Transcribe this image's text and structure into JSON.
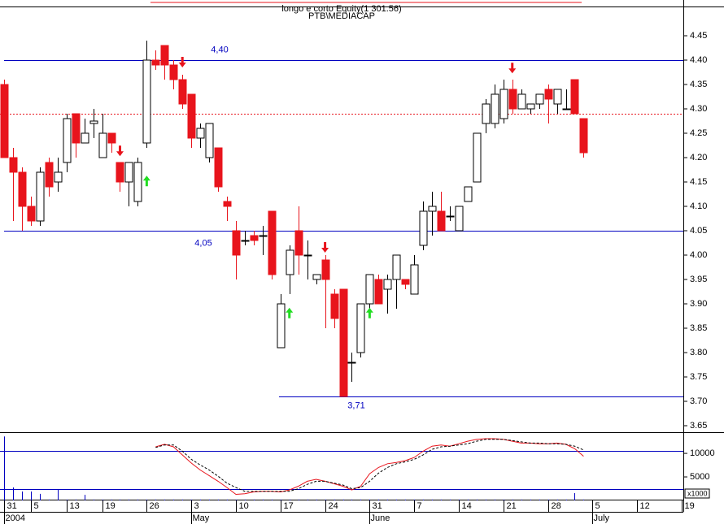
{
  "chart_data": {
    "type": "candlestick",
    "title": "longo e corto Equity(1 301.56)",
    "subtitle": "PTB\\MEDIACAP",
    "categories": [
      "31",
      null,
      null,
      "5",
      null,
      null,
      null,
      "13",
      null,
      null,
      null,
      "19",
      null,
      null,
      null,
      null,
      "26",
      null,
      null,
      null,
      null,
      "3",
      null,
      null,
      null,
      null,
      "10",
      null,
      null,
      null,
      null,
      "17",
      null,
      null,
      null,
      null,
      "24",
      null,
      null,
      null,
      null,
      "31",
      null,
      null,
      null,
      null,
      "7",
      null,
      null,
      null,
      null,
      "14",
      null,
      null,
      null,
      null,
      "21",
      null,
      null,
      null,
      null,
      "28",
      null,
      null,
      null,
      null,
      "5",
      null,
      null,
      null,
      null,
      "12",
      null,
      null,
      null,
      null,
      "19"
    ],
    "months": [
      "2004",
      null,
      null,
      null,
      null,
      null,
      null,
      null,
      null,
      null,
      null,
      null,
      null,
      null,
      null,
      null,
      null,
      null,
      null,
      null,
      null,
      "May",
      null,
      null,
      null,
      null,
      null,
      null,
      null,
      null,
      null,
      null,
      null,
      null,
      null,
      null,
      null,
      null,
      null,
      null,
      null,
      "June",
      null,
      null,
      null,
      null,
      null,
      null,
      null,
      null,
      null,
      null,
      null,
      null,
      null,
      null,
      null,
      null,
      null,
      null,
      null,
      null,
      null,
      null,
      null,
      null,
      "July",
      null,
      null,
      null,
      null,
      null,
      null,
      null,
      null,
      null,
      null
    ],
    "open": [
      4.35,
      4.2,
      4.17,
      4.1,
      4.07,
      4.19,
      4.15,
      4.19,
      4.29,
      4.23,
      4.27,
      4.2,
      4.25,
      4.19,
      4.15,
      4.11,
      4.23,
      4.4,
      4.43,
      4.39,
      4.36,
      4.33,
      4.24,
      4.2,
      4.22,
      4.11,
      4.05,
      4.03,
      4.04,
      4.04,
      4.09,
      3.81,
      3.96,
      4.05,
      4.0,
      3.95,
      3.99,
      3.92,
      3.93,
      3.78,
      3.8,
      3.9,
      3.95,
      3.93,
      3.95,
      3.95,
      3.92,
      4.02,
      4.09,
      4.09,
      4.08,
      4.05,
      4.11,
      4.15,
      4.27,
      4.27,
      4.28,
      4.34,
      4.3,
      4.3,
      4.31,
      4.34,
      4.31,
      4.3,
      4.36,
      4.28,
      null,
      null,
      null,
      null,
      null,
      null,
      null,
      null,
      null,
      null,
      null
    ],
    "high": [
      4.36,
      4.22,
      4.18,
      4.12,
      4.18,
      4.2,
      4.2,
      4.29,
      4.29,
      4.28,
      4.3,
      4.29,
      4.25,
      4.19,
      4.19,
      4.2,
      4.44,
      4.42,
      4.43,
      4.4,
      4.37,
      4.33,
      4.27,
      4.27,
      4.22,
      4.12,
      4.07,
      4.05,
      4.05,
      4.06,
      4.09,
      3.92,
      4.02,
      4.1,
      4.03,
      3.96,
      4.0,
      3.93,
      3.93,
      3.8,
      3.9,
      3.96,
      3.96,
      3.96,
      4.0,
      3.95,
      4.0,
      4.11,
      4.13,
      4.13,
      4.1,
      4.1,
      4.14,
      4.25,
      4.32,
      4.35,
      4.36,
      4.36,
      4.34,
      4.31,
      4.33,
      4.35,
      4.34,
      4.34,
      4.36,
      4.28,
      null,
      null,
      null,
      null,
      null,
      null,
      null,
      null,
      null,
      null,
      null
    ],
    "low": [
      4.2,
      4.07,
      4.05,
      4.06,
      4.06,
      4.12,
      4.13,
      4.17,
      4.2,
      4.23,
      4.24,
      4.2,
      4.21,
      4.13,
      4.1,
      4.1,
      4.22,
      4.38,
      4.36,
      4.34,
      4.3,
      4.22,
      4.22,
      4.19,
      4.13,
      4.07,
      3.95,
      4.02,
      4.02,
      4.0,
      3.95,
      3.81,
      3.92,
      3.96,
      3.95,
      3.94,
      3.85,
      3.85,
      3.71,
      3.74,
      3.79,
      3.89,
      3.9,
      3.88,
      3.89,
      3.93,
      3.92,
      4.01,
      4.04,
      4.05,
      4.07,
      4.05,
      4.11,
      4.15,
      4.25,
      4.26,
      4.27,
      4.29,
      4.3,
      4.29,
      4.3,
      4.27,
      4.29,
      4.3,
      4.29,
      4.2,
      null,
      null,
      null,
      null,
      null,
      null,
      null,
      null,
      null,
      null,
      null
    ],
    "close": [
      4.2,
      4.17,
      4.1,
      4.07,
      4.17,
      4.14,
      4.17,
      4.28,
      4.23,
      4.25,
      4.275,
      4.25,
      4.23,
      4.15,
      4.19,
      4.19,
      4.4,
      4.39,
      4.39,
      4.36,
      4.31,
      4.24,
      4.26,
      4.27,
      4.14,
      4.1,
      4.0,
      4.03,
      4.03,
      4.04,
      3.96,
      3.9,
      4.01,
      4.0,
      4.0,
      3.96,
      3.95,
      3.87,
      3.71,
      3.78,
      3.9,
      3.96,
      3.9,
      3.95,
      4.0,
      3.94,
      3.98,
      4.09,
      4.1,
      4.05,
      4.08,
      4.1,
      4.14,
      4.25,
      4.31,
      4.33,
      4.34,
      4.3,
      4.33,
      4.31,
      4.33,
      4.32,
      4.34,
      4.3,
      4.29,
      4.21,
      null,
      null,
      null,
      null,
      null,
      null,
      null,
      null,
      null,
      null,
      null
    ],
    "up_color": "#ffffff",
    "down_color": "#e8141c",
    "ylim": [
      3.64,
      4.51
    ],
    "yticks": [
      4.45,
      {
        "value": 4.4,
        "label": "4.40"
      },
      4.35,
      {
        "value": 4.3,
        "label": "4.30"
      },
      4.25,
      {
        "value": 4.2,
        "label": "4.20"
      },
      4.15,
      {
        "value": 4.1,
        "label": "4.10"
      },
      4.05,
      {
        "value": 4,
        "label": "4.00"
      },
      3.95,
      {
        "value": 3.9,
        "label": "3.90"
      },
      3.85,
      {
        "value": 3.8,
        "label": "3.80"
      },
      3.75,
      {
        "value": 3.7,
        "label": "3.70"
      },
      3.65
    ],
    "hlines": [
      {
        "value": 4.4,
        "label": "4,40",
        "color": "#0000c0"
      },
      {
        "value": 4.05,
        "label": "4,05",
        "color": "#0000c0"
      },
      {
        "value": 3.71,
        "label": "3,71",
        "color": "#0000c0"
      },
      {
        "value": 4.29,
        "color": "#e8141c",
        "dashed": true
      }
    ],
    "signals": {
      "sell_color": "#e8141c",
      "buy_color": "#22dd22",
      "sell": [
        null,
        null,
        null,
        null,
        null,
        null,
        null,
        null,
        null,
        null,
        null,
        null,
        null,
        4.213,
        null,
        null,
        null,
        null,
        null,
        null,
        4.395,
        null,
        null,
        null,
        null,
        null,
        null,
        null,
        null,
        null,
        null,
        null,
        null,
        null,
        null,
        null,
        4.015,
        null,
        null,
        null,
        null,
        null,
        null,
        null,
        null,
        null,
        null,
        null,
        null,
        null,
        null,
        null,
        null,
        null,
        null,
        null,
        null,
        4.383,
        null,
        null,
        null,
        null,
        null,
        null,
        null,
        null,
        null,
        null,
        null,
        null,
        null,
        null,
        null,
        null,
        null,
        null,
        null
      ],
      "buy": [
        null,
        null,
        null,
        null,
        null,
        null,
        null,
        null,
        null,
        null,
        null,
        null,
        null,
        null,
        null,
        null,
        4.153,
        null,
        null,
        null,
        null,
        null,
        null,
        null,
        null,
        null,
        null,
        null,
        null,
        null,
        null,
        null,
        3.882,
        null,
        null,
        null,
        null,
        null,
        null,
        null,
        null,
        3.882,
        null,
        null,
        null,
        null,
        null,
        null,
        null,
        null,
        null,
        null,
        null,
        null,
        null,
        null,
        null,
        null,
        null,
        null,
        null,
        null,
        null,
        null,
        null,
        null,
        null,
        null,
        null,
        null,
        null,
        null,
        null,
        null,
        null,
        null,
        null
      ]
    },
    "volume": {
      "color": "#0000c0",
      "unit_label": "x1000",
      "ylim": [
        0,
        14500
      ],
      "yticks": [
        10000,
        5000
      ],
      "values": [
        13600,
        2760,
        1900,
        1900,
        1400,
        200,
        2400,
        200,
        200,
        1200,
        200,
        200,
        200,
        200,
        200,
        200,
        200,
        200,
        200,
        200,
        200,
        200,
        200,
        200,
        200,
        200,
        200,
        200,
        200,
        200,
        200,
        200,
        200,
        200,
        200,
        200,
        200,
        200,
        200,
        200,
        200,
        200,
        200,
        200,
        200,
        200,
        200,
        200,
        200,
        200,
        200,
        200,
        200,
        200,
        200,
        200,
        200,
        200,
        200,
        200,
        200,
        200,
        200,
        200,
        1550,
        200,
        null,
        null,
        null,
        null,
        null,
        null,
        null,
        null,
        null,
        null,
        null
      ]
    },
    "oscillator": {
      "ylim": [
        0,
        100
      ],
      "hlines": [
        80,
        20
      ],
      "hline_color": "#0000c0",
      "series": [
        {
          "color": "#e8141c",
          "values": [
            null,
            null,
            null,
            null,
            null,
            null,
            null,
            null,
            null,
            null,
            null,
            null,
            null,
            null,
            null,
            null,
            null,
            87,
            91,
            87,
            74,
            61,
            50,
            41,
            32,
            22,
            11,
            12,
            15,
            16,
            16,
            15,
            18,
            24,
            32,
            35,
            32,
            28,
            24,
            18,
            24,
            44,
            54,
            60,
            62,
            65,
            70,
            80,
            88,
            90,
            88,
            92,
            96,
            99,
            100,
            100,
            99,
            96,
            93,
            93,
            92,
            92,
            93,
            91,
            84,
            72,
            null,
            null,
            null,
            null,
            null,
            null,
            null,
            null,
            null,
            null,
            null
          ]
        },
        {
          "color": "#000000",
          "dashed": true,
          "values": [
            null,
            null,
            null,
            null,
            null,
            null,
            null,
            null,
            null,
            null,
            null,
            null,
            null,
            null,
            null,
            null,
            null,
            86,
            90,
            90,
            80,
            67,
            58,
            50,
            40,
            29,
            22,
            16,
            16,
            16,
            16,
            16,
            16,
            20,
            27,
            32,
            32,
            29,
            26,
            20,
            22,
            32,
            45,
            54,
            60,
            63,
            67,
            74,
            83,
            87,
            88,
            90,
            92,
            96,
            99,
            99,
            99,
            97,
            95,
            93,
            93,
            92,
            92,
            91,
            88,
            82,
            null,
            null,
            null,
            null,
            null,
            null,
            null,
            null,
            null,
            null,
            null
          ]
        }
      ]
    }
  }
}
